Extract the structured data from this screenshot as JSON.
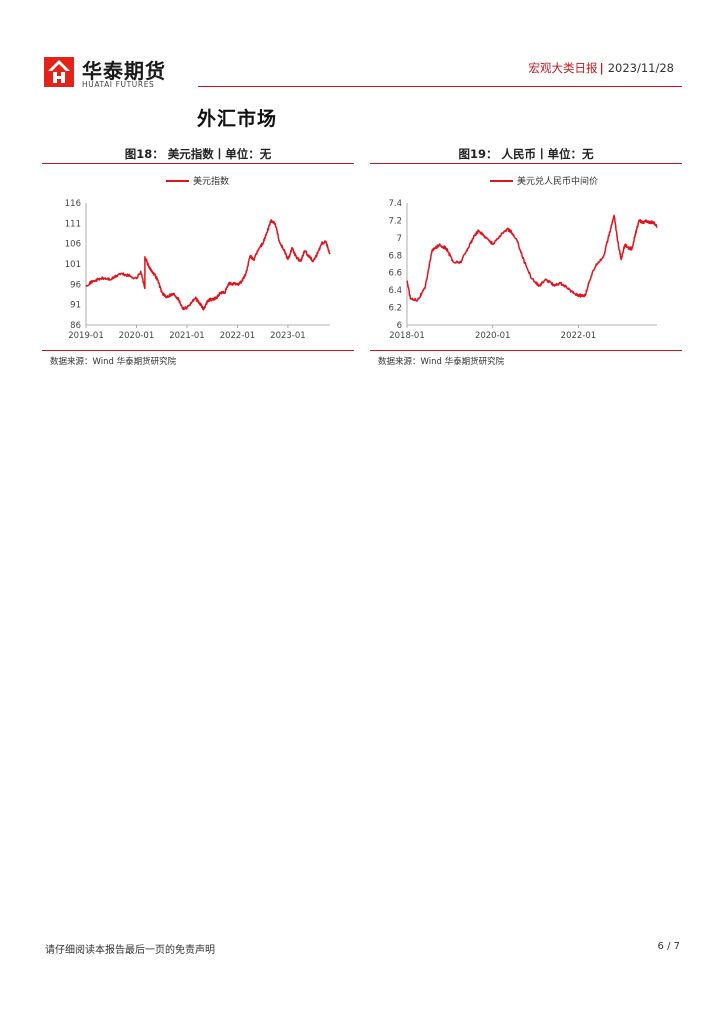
{
  "header": {
    "brand_cn": "华泰期货",
    "brand_en": "HUATAI FUTURES",
    "report_name": "宏观大类日报",
    "separator": "|",
    "date": "2023/11/28"
  },
  "section": {
    "title": "外汇市场"
  },
  "figures": [
    {
      "title": "图18：  美元指数丨单位：无",
      "source": "数据来源：Wind  华泰期货研究院"
    },
    {
      "title": "图19：  人民币丨单位：无",
      "source": "数据来源：Wind  华泰期货研究院"
    }
  ],
  "chart_data": [
    {
      "type": "line",
      "title": "",
      "xlabel": "",
      "ylabel": "",
      "legend": "top-center",
      "grid": false,
      "ylim": [
        86,
        116
      ],
      "yticks": [
        "116",
        "111",
        "106",
        "101",
        "96",
        "91",
        "86"
      ],
      "xlim": [
        "2019-01",
        "2023-11"
      ],
      "xticks": [
        "2019-01",
        "2020-01",
        "2021-01",
        "2022-01",
        "2023-01"
      ],
      "series": [
        {
          "name": "美元指数",
          "color": "#e0141e",
          "x": [
            "2019-01",
            "2019-03",
            "2019-05",
            "2019-07",
            "2019-09",
            "2019-11",
            "2020-01",
            "2020-02",
            "2020-03",
            "2020-03",
            "2020-04",
            "2020-05",
            "2020-06",
            "2020-07",
            "2020-08",
            "2020-09",
            "2020-10",
            "2020-11",
            "2020-12",
            "2021-01",
            "2021-03",
            "2021-04",
            "2021-05",
            "2021-06",
            "2021-07",
            "2021-08",
            "2021-09",
            "2021-10",
            "2021-11",
            "2021-12",
            "2022-01",
            "2022-02",
            "2022-03",
            "2022-04",
            "2022-05",
            "2022-06",
            "2022-07",
            "2022-08",
            "2022-09",
            "2022-10",
            "2022-11",
            "2022-12",
            "2023-01",
            "2023-02",
            "2023-03",
            "2023-04",
            "2023-05",
            "2023-06",
            "2023-07",
            "2023-08",
            "2023-09",
            "2023-10",
            "2023-11"
          ],
          "values": [
            95.8,
            96.9,
            97.5,
            97.2,
            98.6,
            98.2,
            97.4,
            99.2,
            95.0,
            102.8,
            100.1,
            98.9,
            97.2,
            94.1,
            92.8,
            93.4,
            93.6,
            92.3,
            90.1,
            90.3,
            92.6,
            91.3,
            89.9,
            92.1,
            92.3,
            92.7,
            93.9,
            94.0,
            96.2,
            96.1,
            96.0,
            96.7,
            98.6,
            102.9,
            102.1,
            104.7,
            106.0,
            108.7,
            111.8,
            110.9,
            106.4,
            104.6,
            102.1,
            104.9,
            102.6,
            101.7,
            104.2,
            102.9,
            101.7,
            103.6,
            106.1,
            106.6,
            103.4
          ]
        }
      ]
    },
    {
      "type": "line",
      "title": "",
      "xlabel": "",
      "ylabel": "",
      "legend": "top-center",
      "grid": false,
      "ylim": [
        6,
        7.4
      ],
      "yticks": [
        "7.4",
        "7.2",
        "7",
        "6.8",
        "6.6",
        "6.4",
        "6.2",
        "6"
      ],
      "xlim": [
        "2018-01",
        "2023-11"
      ],
      "xticks": [
        "2018-01",
        "2020-01",
        "2022-01"
      ],
      "series": [
        {
          "name": "美元兑人民币中间价",
          "color": "#e0141e",
          "x": [
            "2018-01",
            "2018-02",
            "2018-04",
            "2018-06",
            "2018-08",
            "2018-10",
            "2018-12",
            "2019-02",
            "2019-04",
            "2019-06",
            "2019-08",
            "2019-09",
            "2019-11",
            "2020-01",
            "2020-03",
            "2020-05",
            "2020-06",
            "2020-08",
            "2020-10",
            "2020-12",
            "2021-02",
            "2021-04",
            "2021-06",
            "2021-08",
            "2021-10",
            "2021-12",
            "2022-02",
            "2022-03",
            "2022-04",
            "2022-06",
            "2022-08",
            "2022-10",
            "2022-11",
            "2022-12",
            "2023-01",
            "2023-02",
            "2023-03",
            "2023-04",
            "2023-05",
            "2023-06",
            "2023-07",
            "2023-08",
            "2023-09",
            "2023-10",
            "2023-11"
          ],
          "values": [
            6.51,
            6.3,
            6.29,
            6.42,
            6.85,
            6.92,
            6.88,
            6.72,
            6.72,
            6.88,
            7.03,
            7.08,
            7.01,
            6.93,
            7.02,
            7.1,
            7.08,
            6.95,
            6.71,
            6.53,
            6.45,
            6.52,
            6.46,
            6.48,
            6.42,
            6.36,
            6.33,
            6.35,
            6.5,
            6.7,
            6.78,
            7.1,
            7.26,
            6.96,
            6.75,
            6.92,
            6.88,
            6.88,
            7.05,
            7.2,
            7.18,
            7.19,
            7.18,
            7.18,
            7.13
          ]
        }
      ]
    }
  ]
}
